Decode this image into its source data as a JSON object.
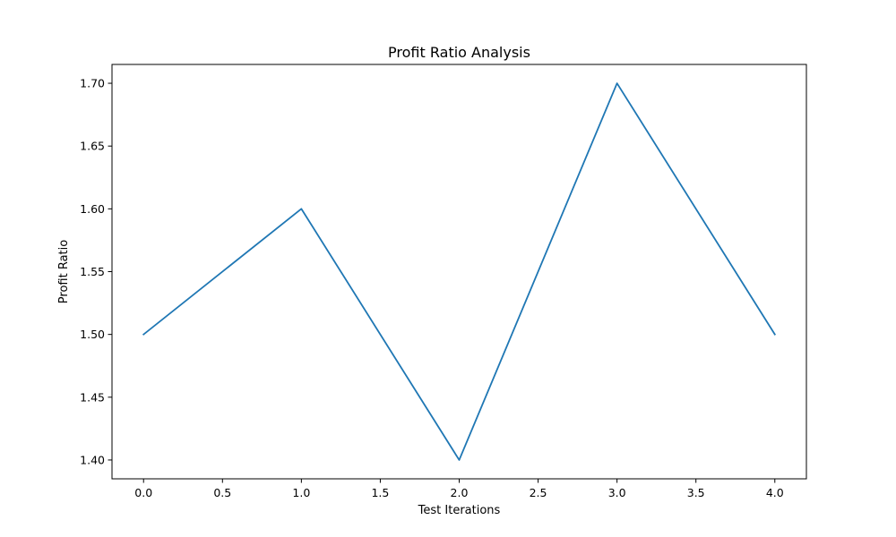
{
  "chart_data": {
    "type": "line",
    "title": "Profit Ratio Analysis",
    "xlabel": "Test Iterations",
    "ylabel": "Profit Ratio",
    "x": [
      0,
      1,
      2,
      3,
      4
    ],
    "series": [
      {
        "values": [
          1.5,
          1.6,
          1.4,
          1.7,
          1.5
        ],
        "color": "#1f77b4"
      }
    ],
    "xlim": [
      -0.2,
      4.2
    ],
    "ylim": [
      1.385,
      1.715
    ],
    "xticks": [
      0,
      0.5,
      1,
      1.5,
      2,
      2.5,
      3,
      3.5,
      4
    ],
    "xtick_labels": [
      "0.0",
      "0.5",
      "1.0",
      "1.5",
      "2.0",
      "2.5",
      "3.0",
      "3.5",
      "4.0"
    ],
    "yticks": [
      1.4,
      1.45,
      1.5,
      1.55,
      1.6,
      1.65,
      1.7
    ],
    "ytick_labels": [
      "1.40",
      "1.45",
      "1.50",
      "1.55",
      "1.60",
      "1.65",
      "1.70"
    ],
    "grid": false,
    "legend": "none"
  }
}
